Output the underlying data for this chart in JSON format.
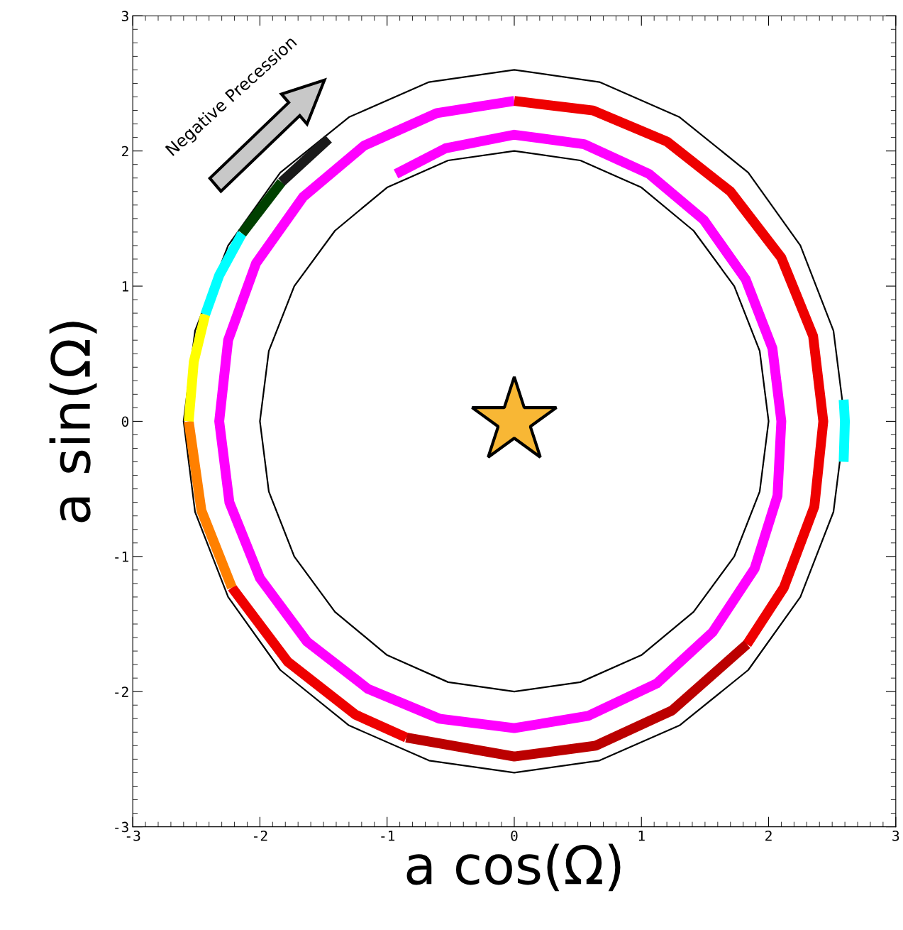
{
  "chart_data": {
    "type": "line",
    "xlabel": "a cos(Ω)",
    "ylabel": "a sin(Ω)",
    "annotations": [
      "Negative Precession"
    ],
    "xlim": [
      -3,
      3
    ],
    "ylim": [
      -3,
      3
    ],
    "xticks": [
      -3,
      -2,
      -1,
      0,
      1,
      2,
      3
    ],
    "yticks": [
      -3,
      -2,
      -1,
      0,
      1,
      2,
      3
    ],
    "grid": false,
    "legend": false,
    "series": [
      {
        "color": "#000000",
        "x": [
          2,
          1.93,
          1.73,
          1.41,
          1,
          0.52,
          0,
          -0.52,
          -1,
          -1.41,
          -1.73,
          -1.93,
          -2,
          -1.93,
          -1.73,
          -1.41,
          -1,
          -0.52,
          0,
          0.52,
          1,
          1.41,
          1.73,
          1.93,
          2,
          1.93
        ],
        "values": [
          0,
          0.52,
          1,
          1.41,
          1.73,
          1.93,
          2,
          1.93,
          1.73,
          1.41,
          1,
          0.52,
          0,
          -0.52,
          -1,
          -1.41,
          -1.73,
          -1.93,
          -2,
          -1.93,
          -1.73,
          -1.41,
          -1,
          -0.52,
          0,
          0.52
        ]
      },
      {
        "color": "#050505",
        "x": [
          2.6,
          2.51,
          2.25,
          1.84,
          1.3,
          0.67,
          0,
          -0.67,
          -1.3,
          -1.84,
          -2.25,
          -2.51,
          -2.6,
          -2.51,
          -2.25,
          -1.84,
          -1.3,
          -0.67,
          0,
          0.67,
          1.3,
          1.84,
          2.25,
          2.51,
          2.6,
          2.51
        ],
        "values": [
          0,
          0.67,
          1.3,
          1.84,
          2.25,
          2.51,
          2.6,
          2.51,
          2.25,
          1.84,
          1.3,
          0.67,
          0,
          -0.67,
          -1.3,
          -1.84,
          -2.25,
          -2.51,
          -2.6,
          -2.51,
          -2.25,
          -1.84,
          -1.3,
          -0.67,
          0,
          0.67
        ]
      },
      {
        "color": "#ff00ff",
        "x": [
          -0.93,
          -0.54,
          0,
          0.55,
          1.06,
          1.49,
          1.82,
          2.03,
          2.1,
          2.07,
          1.89,
          1.56,
          1.12,
          0.58,
          0,
          -0.59,
          -1.15,
          -1.63,
          -2.0,
          -2.24,
          -2.32,
          -2.25,
          -2.03,
          -1.66,
          -1.18,
          -0.61,
          0
        ],
        "values": [
          1.83,
          2.02,
          2.12,
          2.05,
          1.83,
          1.49,
          1.05,
          0.54,
          0,
          -0.55,
          -1.09,
          -1.56,
          -1.94,
          -2.18,
          -2.27,
          -2.2,
          -1.98,
          -1.63,
          -1.16,
          -0.6,
          0,
          0.6,
          1.17,
          1.66,
          2.04,
          2.28,
          2.37
        ]
      },
      {
        "color": "#ee0000",
        "x": [
          0,
          0.62,
          1.2,
          1.7,
          2.1,
          2.35,
          2.43,
          2.36,
          2.12,
          1.83
        ],
        "values": [
          2.37,
          2.3,
          2.07,
          1.7,
          1.21,
          0.63,
          0,
          -0.63,
          -1.23,
          -1.65
        ]
      },
      {
        "color": "#bb0000",
        "x": [
          1.83,
          1.24,
          0.64,
          0,
          -0.85
        ],
        "values": [
          -1.65,
          -2.14,
          -2.4,
          -2.48,
          -2.34
        ]
      },
      {
        "color": "#ee0000",
        "x": [
          -0.85,
          -1.25,
          -1.78,
          -2.22
        ],
        "values": [
          -2.34,
          -2.17,
          -1.78,
          -1.23
        ]
      },
      {
        "color": "#ff8000",
        "x": [
          -2.22,
          -2.46,
          -2.56
        ],
        "values": [
          -1.23,
          -0.66,
          0
        ]
      },
      {
        "color": "#ffff00",
        "x": [
          -2.56,
          -2.52,
          -2.43
        ],
        "values": [
          0,
          0.44,
          0.79
        ]
      },
      {
        "color": "#00ffff",
        "x": [
          -2.43,
          -2.32,
          -2.14
        ],
        "values": [
          0.79,
          1.08,
          1.39
        ]
      },
      {
        "color": "#004000",
        "x": [
          -2.14,
          -1.83
        ],
        "values": [
          1.39,
          1.77
        ]
      },
      {
        "color": "#1a1a1a",
        "x": [
          -1.83,
          -1.46
        ],
        "values": [
          1.77,
          2.09
        ]
      },
      {
        "color": "#00ffff",
        "x": [
          2.59,
          2.6,
          2.59
        ],
        "values": [
          0.16,
          0,
          -0.3
        ]
      }
    ]
  }
}
